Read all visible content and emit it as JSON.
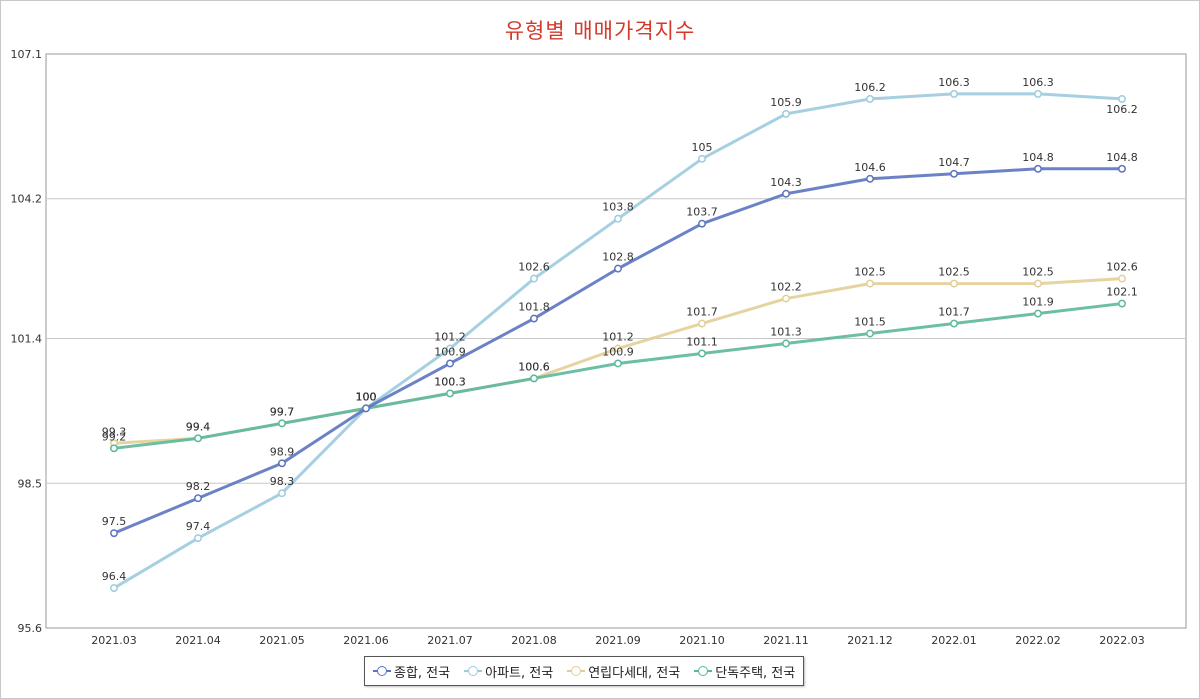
{
  "chart_data": {
    "type": "line",
    "title": "유형별 매매가격지수",
    "categories": [
      "2021.03",
      "2021.04",
      "2021.05",
      "2021.06",
      "2021.07",
      "2021.08",
      "2021.09",
      "2021.10",
      "2021.11",
      "2021.12",
      "2022.01",
      "2022.02",
      "2022.03"
    ],
    "ylim": [
      95.6,
      107.1
    ],
    "yticks": [
      "95.6",
      "98.5",
      "101.4",
      "104.2",
      "107.1"
    ],
    "grid": true,
    "legend_position": "bottom",
    "series": [
      {
        "name": "종합, 전국",
        "color": "#5b74c0",
        "values": [
          97.5,
          98.2,
          98.9,
          100,
          100.9,
          101.8,
          102.8,
          103.7,
          104.3,
          104.6,
          104.7,
          104.8,
          104.8
        ]
      },
      {
        "name": "아파트, 전국",
        "color": "#9ccbdf",
        "values": [
          96.4,
          97.4,
          98.3,
          100,
          101.2,
          102.6,
          103.8,
          105,
          105.9,
          106.2,
          106.3,
          106.3,
          106.2
        ]
      },
      {
        "name": "연립다세대, 전국",
        "color": "#e3cf96",
        "values": [
          99.3,
          99.4,
          99.7,
          100,
          100.3,
          100.6,
          101.2,
          101.7,
          102.2,
          102.5,
          102.5,
          102.5,
          102.6
        ]
      },
      {
        "name": "단독주택, 전국",
        "color": "#5cb89c",
        "values": [
          99.2,
          99.4,
          99.7,
          100,
          100.3,
          100.6,
          100.9,
          101.1,
          101.3,
          101.5,
          101.7,
          101.9,
          102.1
        ]
      }
    ]
  }
}
